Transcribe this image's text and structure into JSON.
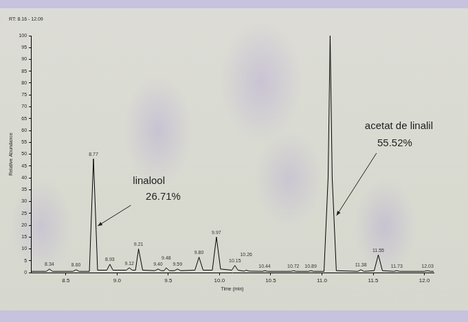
{
  "chart_data": {
    "type": "line",
    "title": "RT: 8.16 - 12.09",
    "x_label": "Time (min)",
    "y_label": "Relative Abundance",
    "color": "#000000",
    "grid": false,
    "xlim": [
      8.16,
      12.09
    ],
    "xticks": [
      8.5,
      {
        "value": 9,
        "label": "9.0"
      },
      9.5,
      {
        "value": 10,
        "label": "10.0"
      },
      10.5,
      {
        "value": 11,
        "label": "11.0"
      },
      11.5,
      {
        "value": 12,
        "label": "12.0"
      }
    ],
    "ylim": [
      0,
      100
    ],
    "yticks": [
      0,
      5,
      10,
      15,
      20,
      25,
      30,
      35,
      40,
      45,
      50,
      55,
      60,
      65,
      70,
      75,
      80,
      85,
      90,
      95,
      100
    ],
    "x": [
      8.16,
      8.31,
      8.34,
      8.37,
      8.57,
      8.6,
      8.63,
      8.73,
      8.77,
      8.81,
      8.9,
      8.93,
      8.96,
      9.09,
      9.12,
      9.15,
      9.18,
      9.21,
      9.25,
      9.37,
      9.4,
      9.43,
      9.46,
      9.48,
      9.51,
      9.56,
      9.59,
      9.62,
      9.76,
      9.8,
      9.84,
      9.93,
      9.97,
      10.01,
      10.12,
      10.15,
      10.18,
      10.24,
      10.26,
      10.29,
      10.42,
      10.44,
      10.47,
      10.7,
      10.72,
      10.75,
      10.87,
      10.89,
      10.92,
      11.02,
      11.06,
      11.08,
      11.1,
      11.14,
      11.35,
      11.38,
      11.41,
      11.51,
      11.55,
      11.59,
      11.7,
      11.73,
      11.76,
      12.0,
      12.03,
      12.06,
      12.09
    ],
    "values": [
      0.5,
      0.5,
      1.5,
      0.5,
      0.5,
      1.2,
      0.5,
      0.5,
      48,
      1,
      1,
      3.5,
      1,
      1,
      2,
      1,
      1,
      10,
      1,
      0.8,
      1.5,
      0.8,
      0.8,
      2,
      0.8,
      0.8,
      1.5,
      0.8,
      1,
      6.5,
      1,
      1,
      15,
      1.5,
      1,
      3,
      1,
      0.6,
      1,
      0.6,
      0.5,
      0.8,
      0.5,
      0.5,
      0.8,
      0.5,
      0.5,
      0.8,
      0.5,
      0.5,
      40,
      100,
      40,
      0.8,
      0.5,
      1.2,
      0.5,
      0.8,
      7.5,
      0.8,
      0.5,
      0.8,
      0.5,
      0.5,
      0.8,
      0.5,
      0.5
    ],
    "peaks": [
      {
        "x": 8.34,
        "y": 1.5,
        "label": "8.34"
      },
      {
        "x": 8.6,
        "y": 1.2,
        "label": "8.60"
      },
      {
        "x": 8.77,
        "y": 48,
        "label": "8.77"
      },
      {
        "x": 8.93,
        "y": 3.5,
        "label": "8.93"
      },
      {
        "x": 9.12,
        "y": 2,
        "label": "9.12"
      },
      {
        "x": 9.21,
        "y": 10,
        "label": "9.21"
      },
      {
        "x": 9.4,
        "y": 1.5,
        "label": "9.40"
      },
      {
        "x": 9.48,
        "y": 2,
        "label": "9.48"
      },
      {
        "x": 9.59,
        "y": 1.5,
        "label": "9.59"
      },
      {
        "x": 9.8,
        "y": 6.5,
        "label": "9.80"
      },
      {
        "x": 9.97,
        "y": 15,
        "label": "9.97"
      },
      {
        "x": 10.15,
        "y": 3,
        "label": "10.15"
      },
      {
        "x": 10.26,
        "y": 1,
        "label": "10.26"
      },
      {
        "x": 10.44,
        "y": 0.8,
        "label": "10.44"
      },
      {
        "x": 10.72,
        "y": 0.8,
        "label": "10.72"
      },
      {
        "x": 10.89,
        "y": 0.8,
        "label": "10.89"
      },
      {
        "x": 11.38,
        "y": 1.2,
        "label": "11.38"
      },
      {
        "x": 11.55,
        "y": 7.5,
        "label": "11.55"
      },
      {
        "x": 11.73,
        "y": 0.8,
        "label": "11.73"
      },
      {
        "x": 12.03,
        "y": 0.8,
        "label": "12.03"
      }
    ],
    "annotations": [
      {
        "lines": [
          "linalool",
          "26.71%"
        ]
      },
      {
        "lines": [
          "acetat de linalil",
          "55.52%"
        ]
      }
    ]
  }
}
